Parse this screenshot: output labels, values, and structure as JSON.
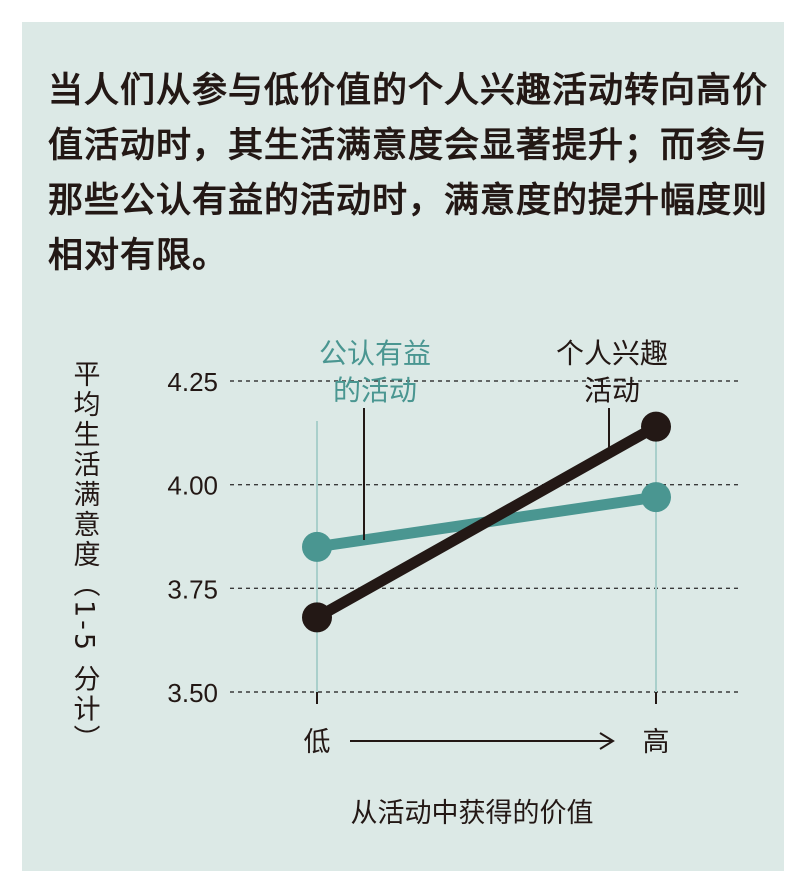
{
  "headline": "当人们从参与低价值的个人兴趣活动转向高价值活动时，其生活满意度会显著提升；而参与那些公认有益的活动时，满意度的提升幅度则相对有限。",
  "chart_data": {
    "type": "line",
    "title": "",
    "xlabel": "从活动中获得的价值",
    "ylabel": "平均生活满意度（1-5 分计）",
    "categories": [
      "低",
      "高"
    ],
    "ylim": [
      3.5,
      4.25
    ],
    "yticks": [
      3.5,
      3.75,
      4.0,
      4.25
    ],
    "ytick_labels": [
      "3.50",
      "3.75",
      "4.00",
      "4.25"
    ],
    "grid": true,
    "series": [
      {
        "name": "公认有益的活动",
        "label_lines": [
          "公认有益",
          "的活动"
        ],
        "values": [
          3.85,
          3.97
        ],
        "color": "#4a9691"
      },
      {
        "name": "个人兴趣活动",
        "label_lines": [
          "个人兴趣",
          "活动"
        ],
        "values": [
          3.68,
          4.14
        ],
        "color": "#231815"
      }
    ]
  }
}
